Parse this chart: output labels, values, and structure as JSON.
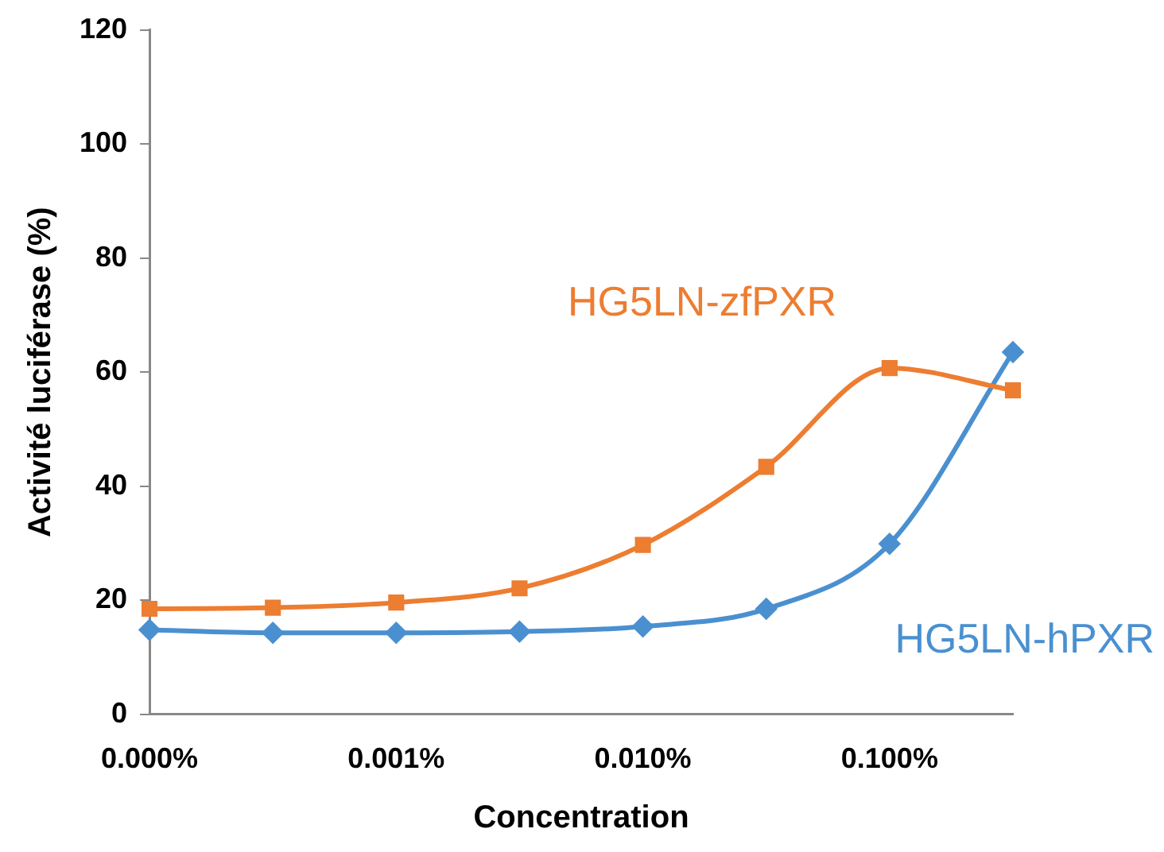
{
  "chart_data": {
    "type": "line",
    "xlabel": "Concentration",
    "ylabel": "Activité luciférase (%)",
    "categories": [
      "0.000%",
      null,
      "0.001%",
      null,
      "0.010%",
      null,
      "0.100%",
      null
    ],
    "ylim": [
      0,
      120
    ],
    "yticks": [
      0,
      20,
      40,
      60,
      80,
      100,
      120
    ],
    "grid": false,
    "legend": false,
    "series": [
      {
        "name": "HG5LN-zfPXR",
        "color": "#ed7d31",
        "marker": "square",
        "values": [
          18.5,
          18.7,
          19.6,
          22.1,
          29.7,
          43.4,
          60.7,
          56.8
        ]
      },
      {
        "name": "HG5LN-hPXR",
        "color": "#4a90d0",
        "marker": "diamond",
        "values": [
          14.8,
          14.3,
          14.3,
          14.5,
          15.4,
          18.5,
          29.9,
          63.5
        ]
      }
    ]
  }
}
